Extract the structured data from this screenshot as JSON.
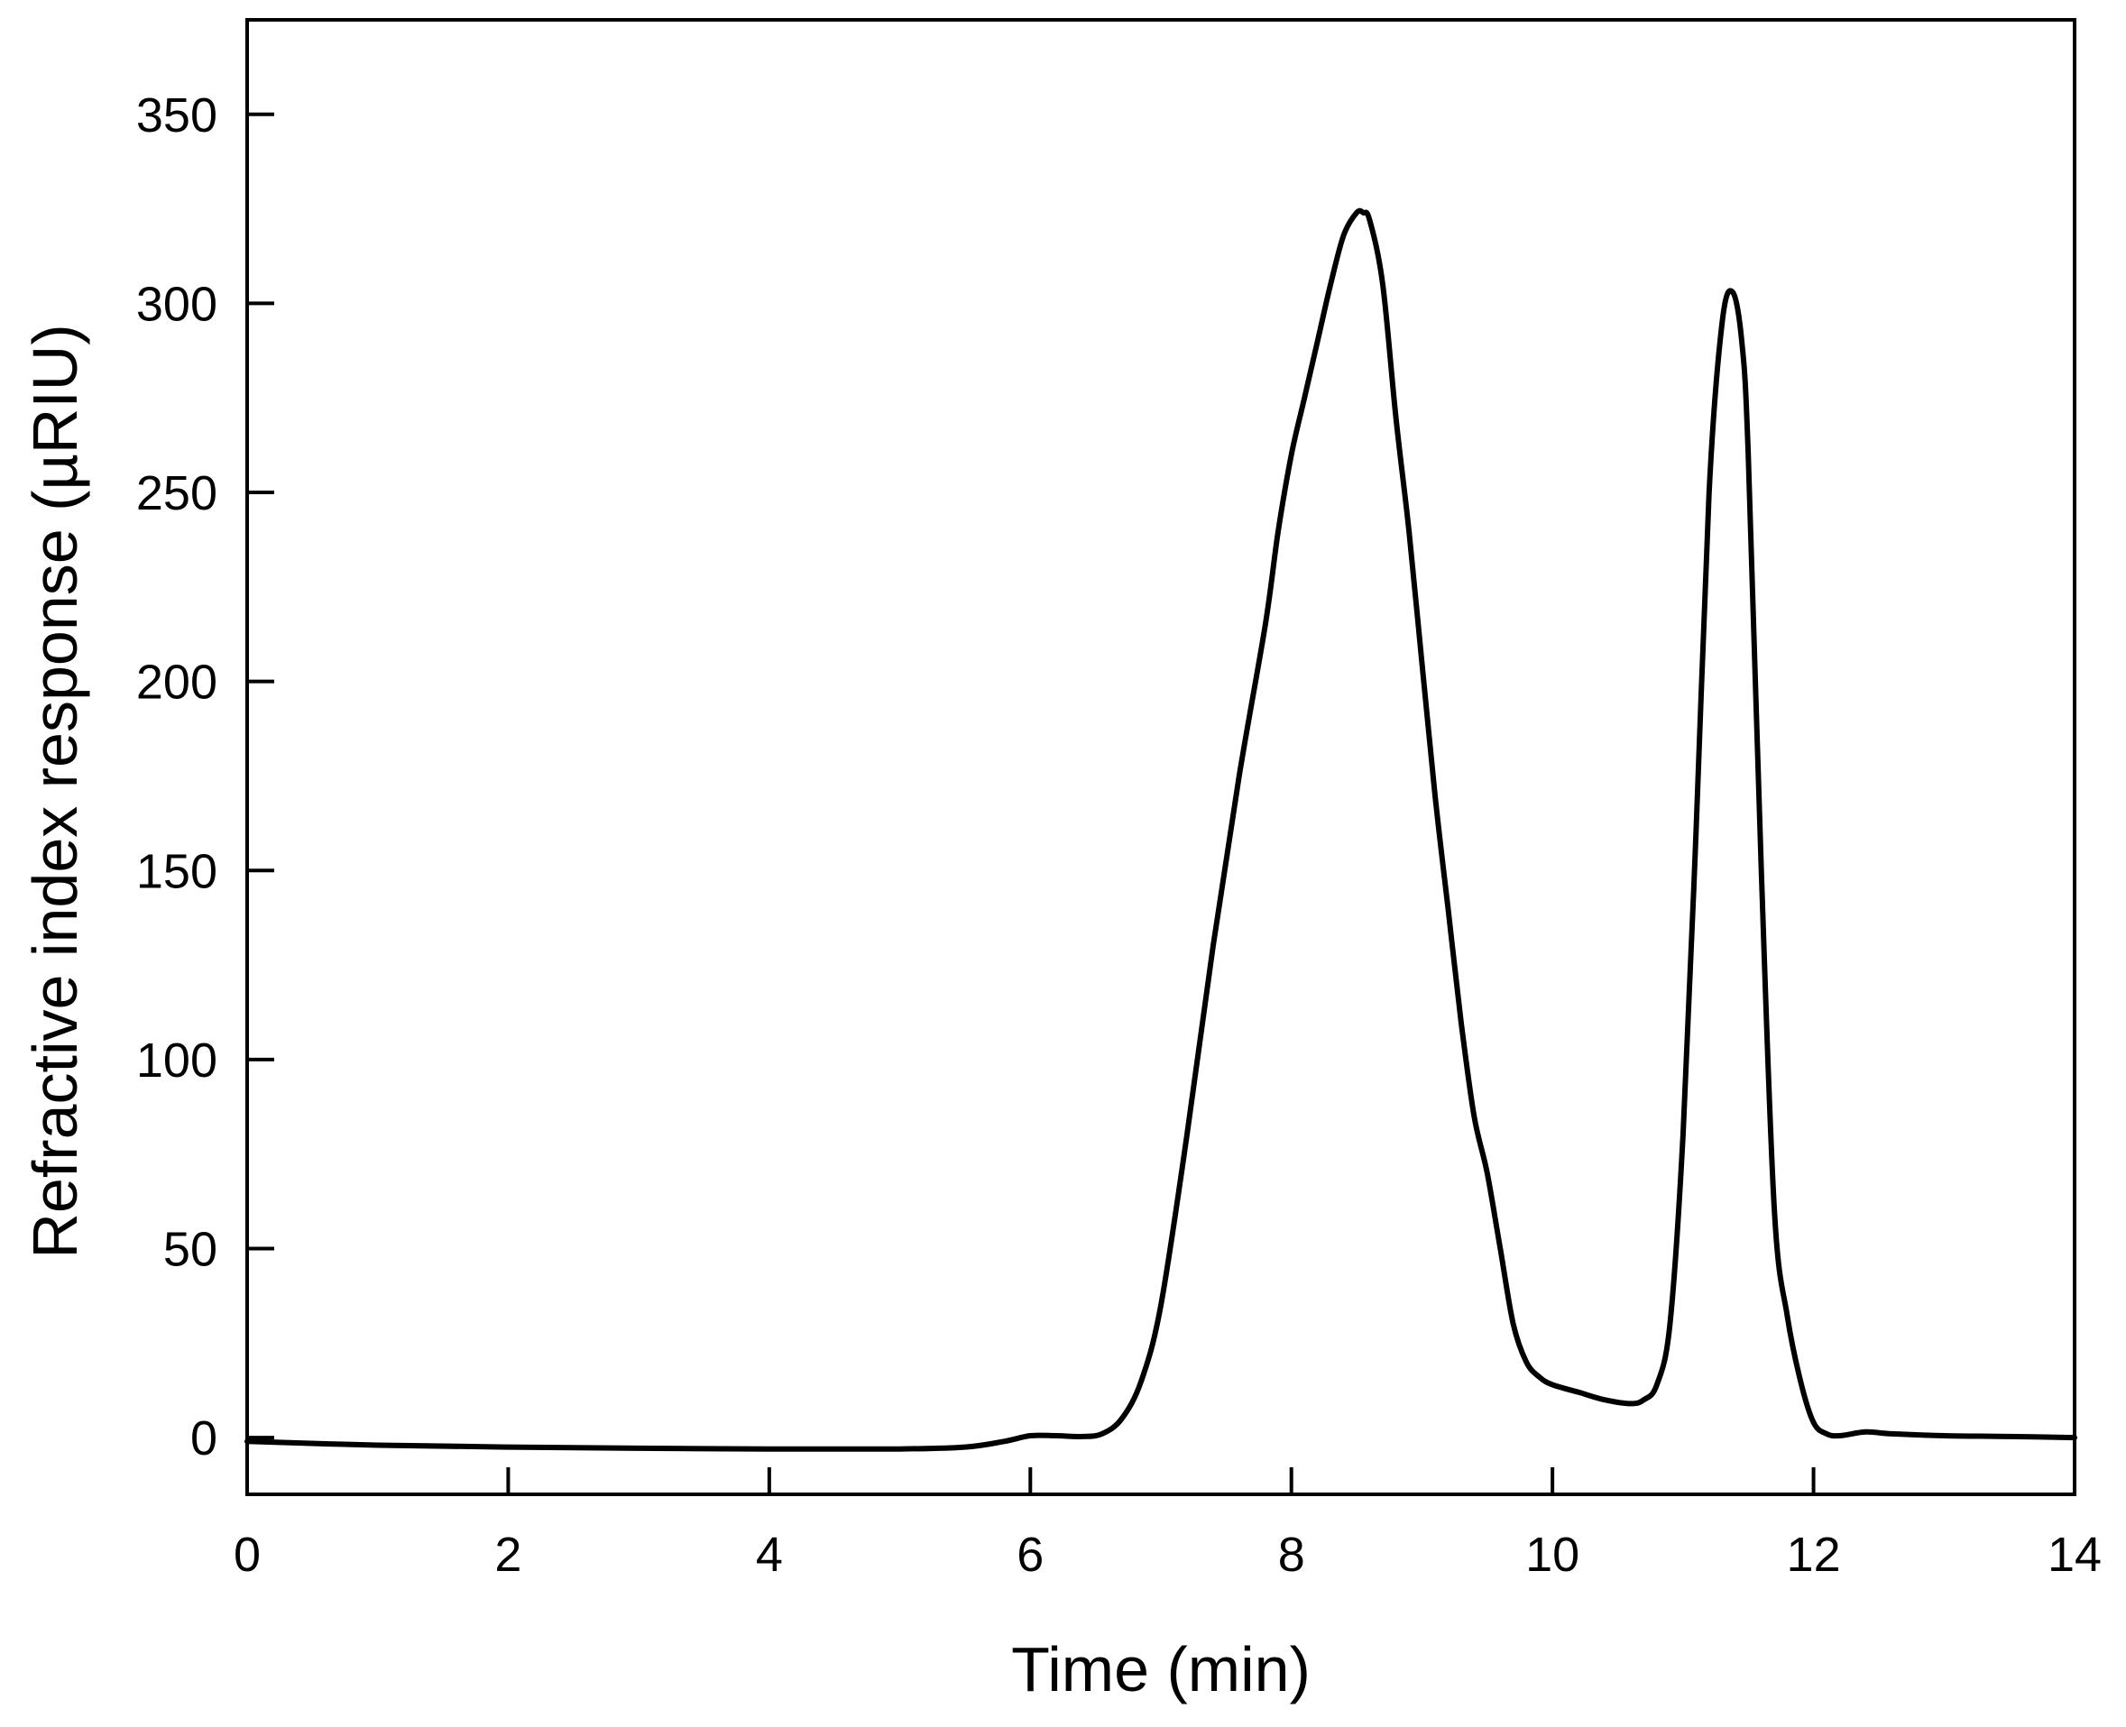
{
  "chart_data": {
    "type": "line",
    "title": "",
    "xlabel": "Time (min)",
    "ylabel": "Refractive index response (µRIU)",
    "xlim": [
      0,
      14
    ],
    "ylim": [
      -15,
      375
    ],
    "x_ticks": [
      0,
      2,
      4,
      6,
      8,
      10,
      12,
      14
    ],
    "y_ticks": [
      0,
      50,
      100,
      150,
      200,
      250,
      300,
      350
    ],
    "grid": false,
    "legend": "none",
    "line_color": "#000000",
    "series": [
      {
        "x": [
          0,
          1,
          2,
          3,
          4,
          5,
          5.5,
          5.8,
          6.0,
          6.2,
          6.4,
          6.55,
          6.7,
          6.85,
          7.0,
          7.2,
          7.4,
          7.6,
          7.8,
          7.9,
          8.0,
          8.1,
          8.2,
          8.3,
          8.4,
          8.5,
          8.55,
          8.6,
          8.7,
          8.8,
          8.9,
          9.0,
          9.1,
          9.2,
          9.3,
          9.4,
          9.5,
          9.6,
          9.7,
          9.8,
          9.9,
          10.0,
          10.2,
          10.4,
          10.6,
          10.7,
          10.8,
          10.9,
          11.0,
          11.1,
          11.2,
          11.3,
          11.38,
          11.45,
          11.5,
          11.6,
          11.7,
          11.8,
          11.9,
          12.0,
          12.1,
          12.2,
          12.4,
          12.6,
          13.0,
          13.5,
          14.0
        ],
        "y": [
          -1,
          -2,
          -2.5,
          -2.8,
          -3,
          -3,
          -2.5,
          -1,
          0.5,
          0.5,
          0.3,
          1,
          5,
          15,
          35,
          80,
          130,
          175,
          215,
          240,
          260,
          275,
          290,
          305,
          318,
          324,
          324,
          322,
          305,
          270,
          240,
          205,
          170,
          140,
          110,
          85,
          70,
          50,
          30,
          20,
          16,
          14,
          12,
          10,
          9,
          10,
          14,
          30,
          80,
          160,
          250,
          295,
          303,
          290,
          260,
          150,
          60,
          32,
          15,
          4,
          1,
          0.5,
          1.5,
          1,
          0.5,
          0.3,
          0
        ]
      }
    ]
  }
}
